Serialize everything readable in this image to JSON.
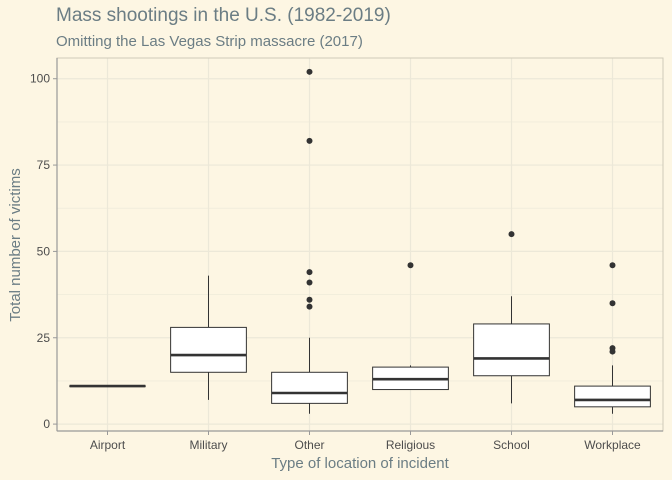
{
  "chart_data": {
    "type": "box",
    "title": "Mass shootings in the U.S. (1982-2019)",
    "subtitle": "Omitting the Las Vegas Strip massacre (2017)",
    "xlabel": "Type of location of incident",
    "ylabel": "Total number of victims",
    "ylim": [
      -2,
      106
    ],
    "yticks": [
      0,
      25,
      50,
      75,
      100
    ],
    "grid": true,
    "categories": [
      "Airport",
      "Military",
      "Other",
      "Religious",
      "School",
      "Workplace"
    ],
    "boxes": [
      {
        "category": "Airport",
        "min": 11,
        "q1": 11,
        "median": 11,
        "q3": 11,
        "max": 11,
        "outliers": []
      },
      {
        "category": "Military",
        "min": 7,
        "q1": 15,
        "median": 20,
        "q3": 28,
        "max": 43,
        "outliers": []
      },
      {
        "category": "Other",
        "min": 3,
        "q1": 6,
        "median": 9,
        "q3": 15,
        "max": 25,
        "outliers": [
          34,
          36,
          41,
          44,
          82,
          102
        ]
      },
      {
        "category": "Religious",
        "min": 10,
        "q1": 10,
        "median": 13,
        "q3": 16.5,
        "max": 17,
        "outliers": [
          46
        ]
      },
      {
        "category": "School",
        "min": 6,
        "q1": 14,
        "median": 19,
        "q3": 29,
        "max": 37,
        "outliers": [
          55
        ]
      },
      {
        "category": "Workplace",
        "min": 3,
        "q1": 5,
        "median": 7,
        "q3": 11,
        "max": 17,
        "outliers": [
          21,
          22,
          35,
          46
        ]
      }
    ]
  },
  "colors": {
    "background": "#fdf6e3",
    "grid": "#ece8d8",
    "box_fill": "#ffffff",
    "box_line": "#333333",
    "point": "#333333",
    "text_muted": "#6b7d84",
    "axis": "#999999"
  }
}
